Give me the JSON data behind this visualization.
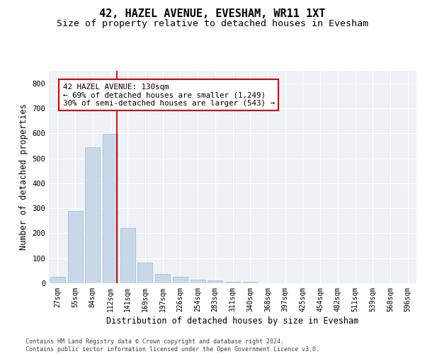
{
  "title": "42, HAZEL AVENUE, EVESHAM, WR11 1XT",
  "subtitle": "Size of property relative to detached houses in Evesham",
  "xlabel": "Distribution of detached houses by size in Evesham",
  "ylabel": "Number of detached properties",
  "categories": [
    "27sqm",
    "55sqm",
    "84sqm",
    "112sqm",
    "141sqm",
    "169sqm",
    "197sqm",
    "226sqm",
    "254sqm",
    "283sqm",
    "311sqm",
    "340sqm",
    "368sqm",
    "397sqm",
    "425sqm",
    "454sqm",
    "482sqm",
    "511sqm",
    "539sqm",
    "568sqm",
    "596sqm"
  ],
  "values": [
    25,
    288,
    543,
    598,
    222,
    82,
    38,
    25,
    13,
    10,
    7,
    5,
    0,
    0,
    0,
    0,
    0,
    0,
    0,
    0,
    0
  ],
  "bar_color": "#c8d8e8",
  "bar_edge_color": "#a0b8d0",
  "annotation_text": "42 HAZEL AVENUE: 130sqm\n← 69% of detached houses are smaller (1,249)\n30% of semi-detached houses are larger (543) →",
  "annotation_box_color": "#ffffff",
  "annotation_box_edge": "#cc0000",
  "red_line_color": "#cc0000",
  "ylim": [
    0,
    850
  ],
  "yticks": [
    0,
    100,
    200,
    300,
    400,
    500,
    600,
    700,
    800
  ],
  "background_color": "#eef2f7",
  "footer_line1": "Contains HM Land Registry data © Crown copyright and database right 2024.",
  "footer_line2": "Contains public sector information licensed under the Open Government Licence v3.0.",
  "title_fontsize": 11,
  "subtitle_fontsize": 9.5,
  "tick_fontsize": 7,
  "ylabel_fontsize": 8.5,
  "xlabel_fontsize": 8.5,
  "footer_fontsize": 6.0,
  "annotation_fontsize": 7.8
}
